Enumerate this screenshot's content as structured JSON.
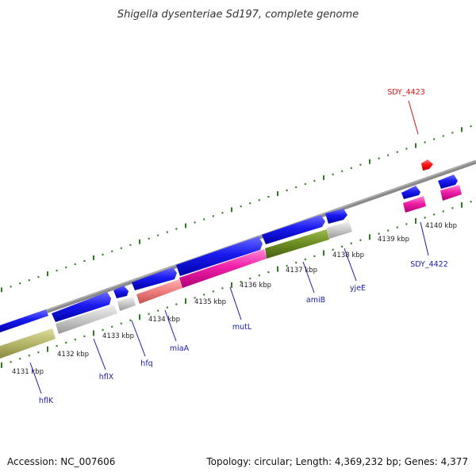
{
  "title": "Shigella dysenteriae Sd197, complete genome",
  "footer": {
    "accession": "Accession: NC_007606",
    "summary": "Topology: circular; Length: 4,369,232 bp; Genes: 4,377"
  },
  "colors": {
    "forward_gene": "#1010e8",
    "reverse_gene": "#ee22aa",
    "highlight_gene": "#ff1111",
    "olive_feature": "#b8b870",
    "green_feature": "#6a8a22",
    "salmon_feature": "#ee8080",
    "gray_feature": "#c8c8c8",
    "backbone": "#888888",
    "tick": "#2e7d1e",
    "label_blue": "#1a1aaa",
    "label_red": "#dd1111"
  },
  "kbp_labels": [
    "4131 kbp",
    "4132 kbp",
    "4133 kbp",
    "4134 kbp",
    "4135 kbp",
    "4136 kbp",
    "4137 kbp",
    "4138 kbp",
    "4139 kbp",
    "4140 kbp"
  ],
  "gene_labels": [
    {
      "id": "hflk",
      "text": "hflK",
      "color": "#1a1aaa"
    },
    {
      "id": "hflx",
      "text": "hflX",
      "color": "#1a1aaa"
    },
    {
      "id": "hfq",
      "text": "hfq",
      "color": "#1a1aaa"
    },
    {
      "id": "miaa",
      "text": "miaA",
      "color": "#1a1aaa"
    },
    {
      "id": "mutl",
      "text": "mutL",
      "color": "#1a1aaa"
    },
    {
      "id": "amib",
      "text": "amiB",
      "color": "#1a1aaa"
    },
    {
      "id": "yjee",
      "text": "yjeE",
      "color": "#1a1aaa"
    },
    {
      "id": "sdy4422",
      "text": "SDY_4422",
      "color": "#1a1aaa"
    },
    {
      "id": "sdy4423",
      "text": "SDY_4423",
      "color": "#dd1111"
    }
  ]
}
